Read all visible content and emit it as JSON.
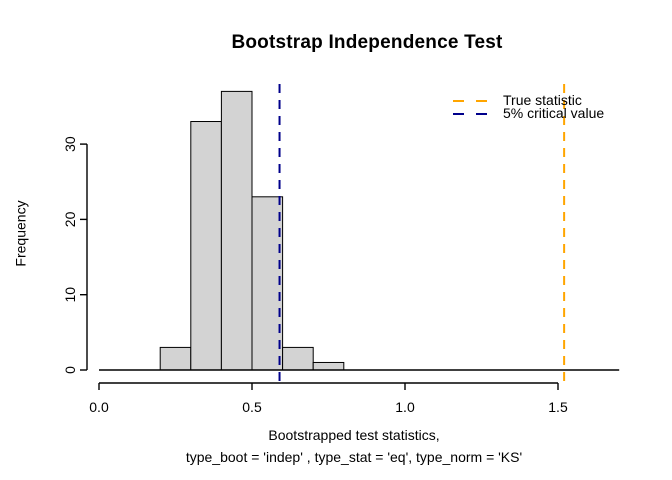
{
  "window": {
    "title": "Bootstrap Independence Test"
  },
  "chart_data": {
    "type": "histogram",
    "title": "Bootstrap Independence Test",
    "xlabel_line1": "Bootstrapped test statistics,",
    "xlabel_line2": "type_boot = 'indep' , type_stat = 'eq', type_norm = 'KS'",
    "ylabel": "Frequency",
    "bins": {
      "breaks": [
        0.2,
        0.3,
        0.4,
        0.5,
        0.6,
        0.7,
        0.8
      ],
      "counts": [
        3,
        33,
        37,
        23,
        3,
        1
      ]
    },
    "bar_fill": "#D3D3D3",
    "bar_stroke": "#000000",
    "xlim": [
      0,
      1.7
    ],
    "ylim": [
      0,
      37
    ],
    "grid": false,
    "x_ticks": [
      {
        "value": 0.0,
        "label": "0.0"
      },
      {
        "value": 0.5,
        "label": "0.5"
      },
      {
        "value": 1.0,
        "label": "1.0"
      },
      {
        "value": 1.5,
        "label": "1.5"
      }
    ],
    "y_ticks": [
      {
        "value": 0,
        "label": "0"
      },
      {
        "value": 10,
        "label": "10"
      },
      {
        "value": 20,
        "label": "20"
      },
      {
        "value": 30,
        "label": "30"
      }
    ],
    "baseline": {
      "from": 0,
      "to": 1.7
    },
    "vlines": [
      {
        "name": "true-statistic-line",
        "value": 1.52,
        "color": "#FFA500",
        "style": "dashed",
        "label": "True statistic"
      },
      {
        "name": "critical-value-line",
        "value": 0.59,
        "color": "#00008B",
        "style": "dashed",
        "label": "5% critical value"
      }
    ],
    "legend": {
      "position": "topright",
      "items": [
        {
          "label": "True statistic",
          "color": "#FFA500"
        },
        {
          "label": "5% critical value",
          "color": "#00008B"
        }
      ]
    }
  }
}
